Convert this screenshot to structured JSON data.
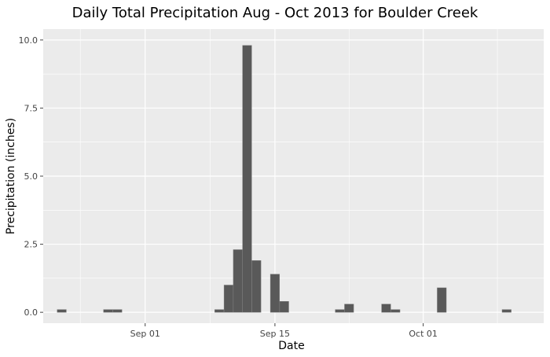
{
  "chart_data": {
    "type": "bar",
    "title": "Daily Total Precipitation Aug - Oct 2013 for Boulder Creek",
    "xlabel": "Date",
    "ylabel": "Precipitation (inches)",
    "x_axis": {
      "type": "date",
      "range": [
        "2013-08-21",
        "2013-10-14"
      ],
      "ticks": [
        {
          "date": "2013-09-01",
          "label": "Sep 01"
        },
        {
          "date": "2013-09-15",
          "label": "Sep 15"
        },
        {
          "date": "2013-10-01",
          "label": "Oct 01"
        }
      ]
    },
    "y_axis": {
      "range": [
        -0.4,
        10.4
      ],
      "ticks": [
        {
          "value": 0,
          "label": "0.0"
        },
        {
          "value": 2.5,
          "label": "2.5"
        },
        {
          "value": 5,
          "label": "5.0"
        },
        {
          "value": 7.5,
          "label": "7.5"
        },
        {
          "value": 10,
          "label": "10.0"
        }
      ]
    },
    "grid": true,
    "colors": {
      "bar": "#595959",
      "bar_edge": "#7a7a7a",
      "panel_background": "#ebebeb",
      "grid": "#ffffff"
    },
    "series": [
      {
        "data": [
          {
            "date": "2013-08-23",
            "value": 0.1
          },
          {
            "date": "2013-08-28",
            "value": 0.1
          },
          {
            "date": "2013-08-29",
            "value": 0.1
          },
          {
            "date": "2013-09-09",
            "value": 0.1
          },
          {
            "date": "2013-09-10",
            "value": 1.0
          },
          {
            "date": "2013-09-11",
            "value": 2.3
          },
          {
            "date": "2013-09-12",
            "value": 9.8
          },
          {
            "date": "2013-09-13",
            "value": 1.9
          },
          {
            "date": "2013-09-15",
            "value": 1.4
          },
          {
            "date": "2013-09-16",
            "value": 0.4
          },
          {
            "date": "2013-09-22",
            "value": 0.1
          },
          {
            "date": "2013-09-23",
            "value": 0.3
          },
          {
            "date": "2013-09-27",
            "value": 0.3
          },
          {
            "date": "2013-09-28",
            "value": 0.1
          },
          {
            "date": "2013-10-03",
            "value": 0.9
          },
          {
            "date": "2013-10-10",
            "value": 0.1
          }
        ]
      }
    ]
  }
}
